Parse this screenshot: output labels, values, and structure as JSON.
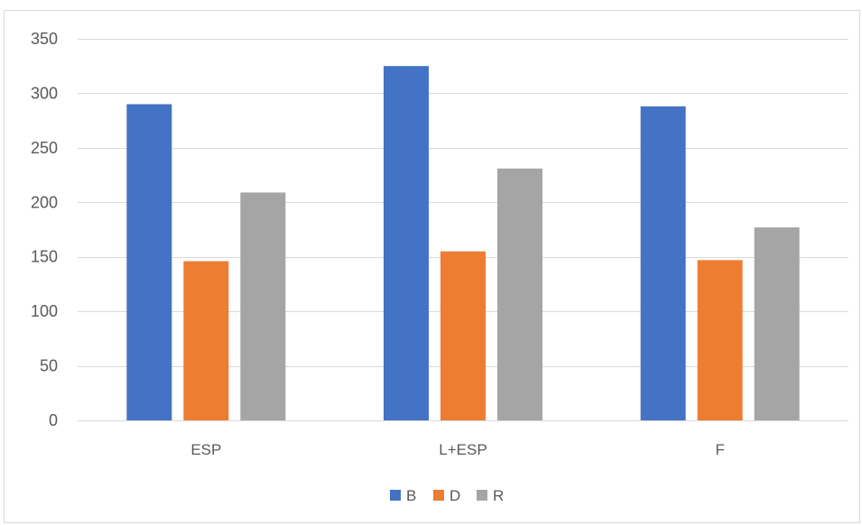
{
  "chart_data": {
    "type": "bar",
    "categories": [
      "ESP",
      "L+ESP",
      "F"
    ],
    "series": [
      {
        "name": "B",
        "color": "#4472c4",
        "values": [
          290,
          325,
          288
        ]
      },
      {
        "name": "D",
        "color": "#ed7d31",
        "values": [
          146,
          155,
          147
        ]
      },
      {
        "name": "R",
        "color": "#a5a5a5",
        "values": [
          209,
          231,
          177
        ]
      }
    ],
    "yticks": [
      0,
      50,
      100,
      150,
      200,
      250,
      300,
      350
    ],
    "ylim": [
      0,
      350
    ],
    "grid": true,
    "legend_position": "bottom",
    "title": "",
    "xlabel": "",
    "ylabel": ""
  }
}
